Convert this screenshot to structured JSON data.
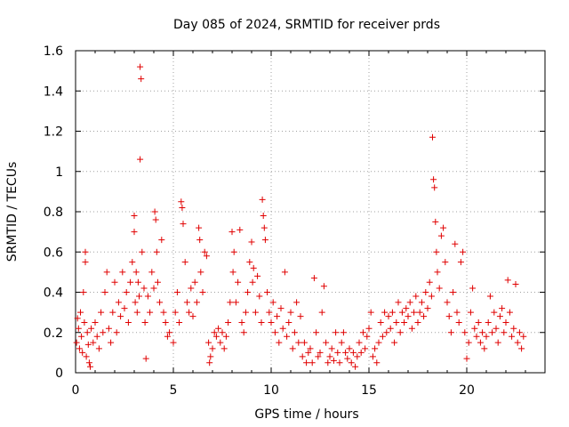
{
  "chart_data": {
    "type": "scatter",
    "title": "Day 085 of 2024, SRMTID for receiver prds",
    "xlabel": "GPS time / hours",
    "ylabel": "SRMTID / TECUs",
    "xlim": [
      0,
      24
    ],
    "ylim": [
      0,
      1.6
    ],
    "xticks": [
      0,
      5,
      10,
      15,
      20
    ],
    "xtick_labels": [
      "0",
      "5",
      "10",
      "15",
      "20"
    ],
    "yticks": [
      0,
      0.2,
      0.4,
      0.6,
      0.8,
      1.0,
      1.2,
      1.4,
      1.6
    ],
    "ytick_labels": [
      "0",
      "0.2",
      "0.4",
      "0.6",
      "0.8",
      "1",
      "1.2",
      "1.4",
      "1.6"
    ],
    "grid": true,
    "marker": "plus",
    "color": "#e00000",
    "series": [
      {
        "name": "SRMTID",
        "points": [
          [
            0.05,
            0.15
          ],
          [
            0.1,
            0.27
          ],
          [
            0.15,
            0.22
          ],
          [
            0.2,
            0.12
          ],
          [
            0.25,
            0.3
          ],
          [
            0.3,
            0.18
          ],
          [
            0.35,
            0.1
          ],
          [
            0.4,
            0.4
          ],
          [
            0.45,
            0.25
          ],
          [
            0.5,
            0.55
          ],
          [
            0.5,
            0.6
          ],
          [
            0.55,
            0.08
          ],
          [
            0.6,
            0.2
          ],
          [
            0.65,
            0.14
          ],
          [
            0.7,
            0.05
          ],
          [
            0.75,
            0.03
          ],
          [
            0.8,
            0.22
          ],
          [
            0.9,
            0.15
          ],
          [
            1.0,
            0.25
          ],
          [
            1.1,
            0.18
          ],
          [
            1.2,
            0.12
          ],
          [
            1.3,
            0.3
          ],
          [
            1.4,
            0.2
          ],
          [
            1.5,
            0.4
          ],
          [
            1.6,
            0.5
          ],
          [
            1.7,
            0.22
          ],
          [
            1.8,
            0.15
          ],
          [
            1.9,
            0.3
          ],
          [
            2.0,
            0.45
          ],
          [
            2.1,
            0.2
          ],
          [
            2.2,
            0.35
          ],
          [
            2.3,
            0.28
          ],
          [
            2.4,
            0.5
          ],
          [
            2.5,
            0.32
          ],
          [
            2.6,
            0.4
          ],
          [
            2.7,
            0.25
          ],
          [
            2.8,
            0.45
          ],
          [
            2.9,
            0.55
          ],
          [
            3.0,
            0.78
          ],
          [
            3.0,
            0.7
          ],
          [
            3.05,
            0.35
          ],
          [
            3.1,
            0.5
          ],
          [
            3.15,
            0.3
          ],
          [
            3.2,
            0.45
          ],
          [
            3.25,
            0.38
          ],
          [
            3.3,
            1.52
          ],
          [
            3.35,
            1.46
          ],
          [
            3.3,
            1.06
          ],
          [
            3.4,
            0.6
          ],
          [
            3.5,
            0.42
          ],
          [
            3.55,
            0.25
          ],
          [
            3.6,
            0.07
          ],
          [
            3.7,
            0.38
          ],
          [
            3.8,
            0.3
          ],
          [
            3.9,
            0.5
          ],
          [
            4.0,
            0.42
          ],
          [
            4.05,
            0.8
          ],
          [
            4.1,
            0.76
          ],
          [
            4.15,
            0.6
          ],
          [
            4.2,
            0.45
          ],
          [
            4.3,
            0.35
          ],
          [
            4.4,
            0.66
          ],
          [
            4.5,
            0.3
          ],
          [
            4.6,
            0.25
          ],
          [
            4.7,
            0.18
          ],
          [
            4.8,
            0.2
          ],
          [
            5.0,
            0.15
          ],
          [
            5.1,
            0.3
          ],
          [
            5.2,
            0.4
          ],
          [
            5.3,
            0.25
          ],
          [
            5.4,
            0.85
          ],
          [
            5.45,
            0.82
          ],
          [
            5.5,
            0.74
          ],
          [
            5.6,
            0.55
          ],
          [
            5.7,
            0.35
          ],
          [
            5.8,
            0.3
          ],
          [
            5.9,
            0.42
          ],
          [
            6.0,
            0.28
          ],
          [
            6.1,
            0.45
          ],
          [
            6.2,
            0.35
          ],
          [
            6.3,
            0.72
          ],
          [
            6.35,
            0.66
          ],
          [
            6.4,
            0.5
          ],
          [
            6.5,
            0.4
          ],
          [
            6.6,
            0.6
          ],
          [
            6.7,
            0.58
          ],
          [
            6.8,
            0.15
          ],
          [
            6.85,
            0.05
          ],
          [
            6.9,
            0.08
          ],
          [
            7.0,
            0.12
          ],
          [
            7.1,
            0.2
          ],
          [
            7.2,
            0.18
          ],
          [
            7.3,
            0.22
          ],
          [
            7.4,
            0.15
          ],
          [
            7.5,
            0.2
          ],
          [
            7.6,
            0.12
          ],
          [
            7.7,
            0.18
          ],
          [
            7.8,
            0.25
          ],
          [
            7.9,
            0.35
          ],
          [
            8.0,
            0.7
          ],
          [
            8.05,
            0.5
          ],
          [
            8.1,
            0.6
          ],
          [
            8.2,
            0.35
          ],
          [
            8.3,
            0.45
          ],
          [
            8.4,
            0.71
          ],
          [
            8.5,
            0.25
          ],
          [
            8.6,
            0.2
          ],
          [
            8.7,
            0.3
          ],
          [
            8.8,
            0.4
          ],
          [
            8.9,
            0.55
          ],
          [
            9.0,
            0.65
          ],
          [
            9.05,
            0.45
          ],
          [
            9.1,
            0.52
          ],
          [
            9.2,
            0.3
          ],
          [
            9.3,
            0.48
          ],
          [
            9.4,
            0.38
          ],
          [
            9.5,
            0.25
          ],
          [
            9.55,
            0.86
          ],
          [
            9.6,
            0.78
          ],
          [
            9.65,
            0.72
          ],
          [
            9.7,
            0.66
          ],
          [
            9.8,
            0.4
          ],
          [
            9.9,
            0.3
          ],
          [
            10.0,
            0.25
          ],
          [
            10.1,
            0.35
          ],
          [
            10.2,
            0.2
          ],
          [
            10.3,
            0.28
          ],
          [
            10.4,
            0.15
          ],
          [
            10.5,
            0.32
          ],
          [
            10.6,
            0.22
          ],
          [
            10.7,
            0.5
          ],
          [
            10.8,
            0.18
          ],
          [
            10.9,
            0.25
          ],
          [
            11.0,
            0.3
          ],
          [
            11.1,
            0.12
          ],
          [
            11.2,
            0.2
          ],
          [
            11.3,
            0.35
          ],
          [
            11.4,
            0.15
          ],
          [
            11.5,
            0.28
          ],
          [
            11.6,
            0.08
          ],
          [
            11.7,
            0.15
          ],
          [
            11.8,
            0.05
          ],
          [
            11.9,
            0.1
          ],
          [
            12.0,
            0.12
          ],
          [
            12.1,
            0.05
          ],
          [
            12.2,
            0.47
          ],
          [
            12.3,
            0.2
          ],
          [
            12.4,
            0.08
          ],
          [
            12.5,
            0.1
          ],
          [
            12.6,
            0.3
          ],
          [
            12.7,
            0.43
          ],
          [
            12.8,
            0.15
          ],
          [
            12.9,
            0.05
          ],
          [
            13.0,
            0.08
          ],
          [
            13.1,
            0.12
          ],
          [
            13.2,
            0.06
          ],
          [
            13.3,
            0.2
          ],
          [
            13.4,
            0.1
          ],
          [
            13.5,
            0.05
          ],
          [
            13.6,
            0.15
          ],
          [
            13.7,
            0.2
          ],
          [
            13.8,
            0.1
          ],
          [
            13.9,
            0.07
          ],
          [
            14.0,
            0.12
          ],
          [
            14.1,
            0.05
          ],
          [
            14.2,
            0.1
          ],
          [
            14.3,
            0.03
          ],
          [
            14.4,
            0.08
          ],
          [
            14.5,
            0.15
          ],
          [
            14.6,
            0.1
          ],
          [
            14.7,
            0.2
          ],
          [
            14.8,
            0.12
          ],
          [
            14.9,
            0.18
          ],
          [
            15.0,
            0.22
          ],
          [
            15.1,
            0.3
          ],
          [
            15.2,
            0.08
          ],
          [
            15.3,
            0.12
          ],
          [
            15.4,
            0.05
          ],
          [
            15.5,
            0.15
          ],
          [
            15.6,
            0.25
          ],
          [
            15.7,
            0.18
          ],
          [
            15.8,
            0.3
          ],
          [
            15.9,
            0.2
          ],
          [
            16.0,
            0.28
          ],
          [
            16.1,
            0.22
          ],
          [
            16.2,
            0.3
          ],
          [
            16.3,
            0.15
          ],
          [
            16.4,
            0.25
          ],
          [
            16.5,
            0.35
          ],
          [
            16.6,
            0.2
          ],
          [
            16.7,
            0.3
          ],
          [
            16.8,
            0.25
          ],
          [
            16.9,
            0.32
          ],
          [
            17.0,
            0.28
          ],
          [
            17.1,
            0.35
          ],
          [
            17.2,
            0.22
          ],
          [
            17.3,
            0.3
          ],
          [
            17.4,
            0.38
          ],
          [
            17.5,
            0.25
          ],
          [
            17.6,
            0.3
          ],
          [
            17.7,
            0.35
          ],
          [
            17.8,
            0.28
          ],
          [
            17.9,
            0.4
          ],
          [
            18.0,
            0.32
          ],
          [
            18.1,
            0.45
          ],
          [
            18.2,
            0.38
          ],
          [
            18.25,
            1.17
          ],
          [
            18.3,
            0.96
          ],
          [
            18.35,
            0.92
          ],
          [
            18.4,
            0.75
          ],
          [
            18.45,
            0.6
          ],
          [
            18.5,
            0.5
          ],
          [
            18.6,
            0.42
          ],
          [
            18.7,
            0.68
          ],
          [
            18.8,
            0.72
          ],
          [
            18.9,
            0.55
          ],
          [
            19.0,
            0.35
          ],
          [
            19.1,
            0.28
          ],
          [
            19.2,
            0.2
          ],
          [
            19.3,
            0.4
          ],
          [
            19.4,
            0.64
          ],
          [
            19.5,
            0.3
          ],
          [
            19.6,
            0.25
          ],
          [
            19.7,
            0.55
          ],
          [
            19.8,
            0.6
          ],
          [
            19.9,
            0.2
          ],
          [
            20.0,
            0.07
          ],
          [
            20.1,
            0.15
          ],
          [
            20.2,
            0.3
          ],
          [
            20.3,
            0.42
          ],
          [
            20.4,
            0.22
          ],
          [
            20.5,
            0.18
          ],
          [
            20.6,
            0.25
          ],
          [
            20.7,
            0.15
          ],
          [
            20.8,
            0.2
          ],
          [
            20.9,
            0.12
          ],
          [
            21.0,
            0.18
          ],
          [
            21.1,
            0.25
          ],
          [
            21.2,
            0.38
          ],
          [
            21.3,
            0.2
          ],
          [
            21.4,
            0.3
          ],
          [
            21.5,
            0.22
          ],
          [
            21.6,
            0.15
          ],
          [
            21.7,
            0.28
          ],
          [
            21.8,
            0.32
          ],
          [
            21.9,
            0.2
          ],
          [
            22.0,
            0.25
          ],
          [
            22.1,
            0.46
          ],
          [
            22.2,
            0.3
          ],
          [
            22.3,
            0.18
          ],
          [
            22.4,
            0.22
          ],
          [
            22.5,
            0.44
          ],
          [
            22.6,
            0.15
          ],
          [
            22.7,
            0.2
          ],
          [
            22.8,
            0.12
          ],
          [
            22.9,
            0.18
          ]
        ]
      }
    ]
  }
}
